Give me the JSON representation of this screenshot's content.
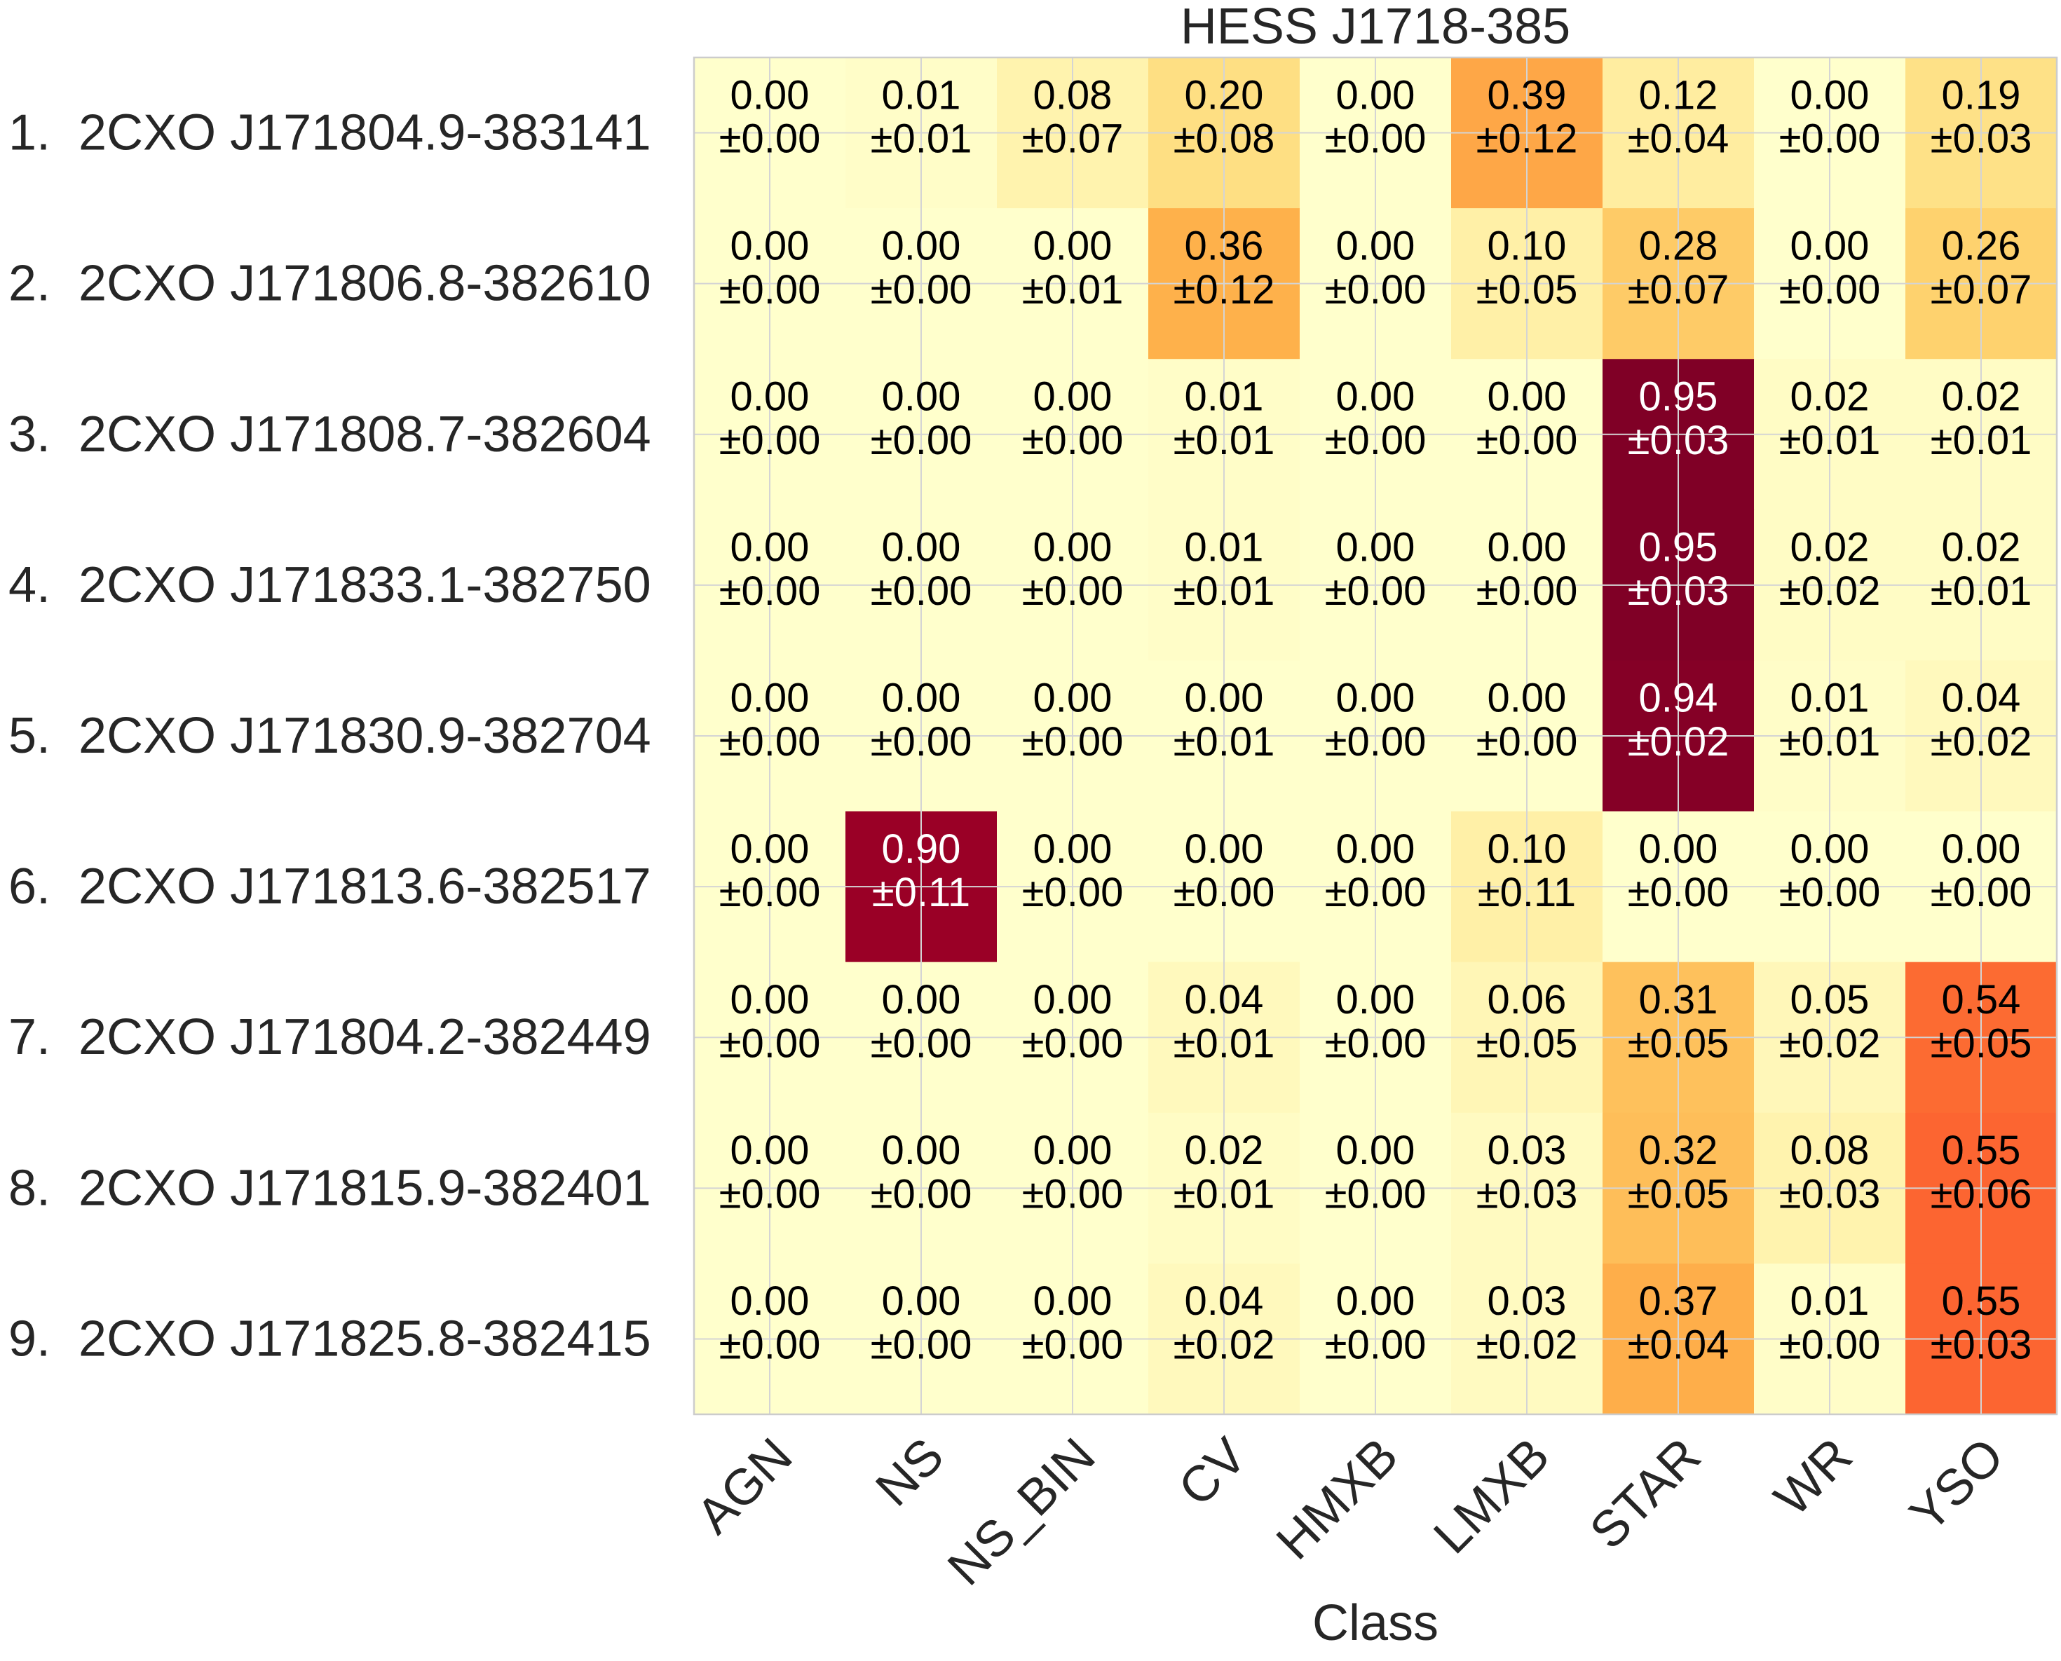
{
  "chart_data": {
    "type": "heatmap",
    "title": "HESS J1718-385",
    "xlabel": "Class",
    "ylabel": "",
    "grid": true,
    "colormap": [
      "#ffffcc",
      "#ffeda0",
      "#fed976",
      "#feb24c",
      "#fd8d3c",
      "#fc4e2a",
      "#e31a1c",
      "#bd0026",
      "#800026"
    ],
    "x_categories": [
      "AGN",
      "NS",
      "NS_BIN",
      "CV",
      "HMXB",
      "LMXB",
      "STAR",
      "WR",
      "YSO"
    ],
    "y_categories": [
      "1.  2CXO J171804.9-383141",
      "2.  2CXO J171806.8-382610",
      "3.  2CXO J171808.7-382604",
      "4.  2CXO J171833.1-382750",
      "5.  2CXO J171830.9-382704",
      "6.  2CXO J171813.6-382517",
      "7.  2CXO J171804.2-382449",
      "8.  2CXO J171815.9-382401",
      "9.  2CXO J171825.8-382415"
    ],
    "values": [
      [
        0.0,
        0.01,
        0.08,
        0.2,
        0.0,
        0.39,
        0.12,
        0.0,
        0.19
      ],
      [
        0.0,
        0.0,
        0.0,
        0.36,
        0.0,
        0.1,
        0.28,
        0.0,
        0.26
      ],
      [
        0.0,
        0.0,
        0.0,
        0.01,
        0.0,
        0.0,
        0.95,
        0.02,
        0.02
      ],
      [
        0.0,
        0.0,
        0.0,
        0.01,
        0.0,
        0.0,
        0.95,
        0.02,
        0.02
      ],
      [
        0.0,
        0.0,
        0.0,
        0.0,
        0.0,
        0.0,
        0.94,
        0.01,
        0.04
      ],
      [
        0.0,
        0.9,
        0.0,
        0.0,
        0.0,
        0.1,
        0.0,
        0.0,
        0.0
      ],
      [
        0.0,
        0.0,
        0.0,
        0.04,
        0.0,
        0.06,
        0.31,
        0.05,
        0.54
      ],
      [
        0.0,
        0.0,
        0.0,
        0.02,
        0.0,
        0.03,
        0.32,
        0.08,
        0.55
      ],
      [
        0.0,
        0.0,
        0.0,
        0.04,
        0.0,
        0.03,
        0.37,
        0.01,
        0.55
      ]
    ],
    "errors": [
      [
        0.0,
        0.01,
        0.07,
        0.08,
        0.0,
        0.12,
        0.04,
        0.0,
        0.03
      ],
      [
        0.0,
        0.0,
        0.01,
        0.12,
        0.0,
        0.05,
        0.07,
        0.0,
        0.07
      ],
      [
        0.0,
        0.0,
        0.0,
        0.01,
        0.0,
        0.0,
        0.03,
        0.01,
        0.01
      ],
      [
        0.0,
        0.0,
        0.0,
        0.01,
        0.0,
        0.0,
        0.03,
        0.02,
        0.01
      ],
      [
        0.0,
        0.0,
        0.0,
        0.01,
        0.0,
        0.0,
        0.02,
        0.01,
        0.02
      ],
      [
        0.0,
        0.11,
        0.0,
        0.0,
        0.0,
        0.11,
        0.0,
        0.0,
        0.0
      ],
      [
        0.0,
        0.0,
        0.0,
        0.01,
        0.0,
        0.05,
        0.05,
        0.02,
        0.05
      ],
      [
        0.0,
        0.0,
        0.0,
        0.01,
        0.0,
        0.03,
        0.05,
        0.03,
        0.06
      ],
      [
        0.0,
        0.0,
        0.0,
        0.02,
        0.0,
        0.02,
        0.04,
        0.0,
        0.03
      ]
    ]
  }
}
